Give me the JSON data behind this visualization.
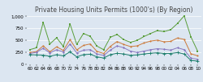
{
  "title": "Private Housing Units Permits (1000's) (By Region)",
  "years": [
    1960,
    1962,
    1964,
    1966,
    1968,
    1970,
    1972,
    1974,
    1976,
    1978,
    1980,
    1982,
    1984,
    1986,
    1988,
    1990,
    1992,
    1994,
    1996,
    1998,
    2000,
    2002,
    2004,
    2006,
    2008,
    2010
  ],
  "south": [
    300,
    340,
    870,
    420,
    550,
    370,
    840,
    410,
    640,
    580,
    375,
    300,
    560,
    620,
    510,
    455,
    495,
    575,
    640,
    700,
    680,
    720,
    850,
    1010,
    570,
    270
  ],
  "west": [
    240,
    260,
    380,
    255,
    360,
    285,
    510,
    295,
    390,
    420,
    265,
    220,
    370,
    470,
    410,
    365,
    380,
    440,
    480,
    500,
    465,
    475,
    545,
    515,
    215,
    170
  ],
  "northeast": [
    220,
    245,
    330,
    230,
    300,
    250,
    420,
    230,
    290,
    300,
    210,
    180,
    290,
    380,
    340,
    270,
    240,
    270,
    300,
    320,
    310,
    290,
    340,
    300,
    120,
    100
  ],
  "midwest": [
    195,
    190,
    185,
    160,
    195,
    170,
    255,
    150,
    195,
    205,
    150,
    125,
    195,
    225,
    210,
    180,
    190,
    210,
    225,
    235,
    220,
    220,
    240,
    210,
    75,
    60
  ],
  "south_color": "#5a9e3b",
  "west_color": "#cc7a3a",
  "northeast_color": "#8878c0",
  "midwest_color": "#1a7d6b",
  "bg_color": "#dce6f1",
  "ylim": [
    0,
    1050
  ],
  "yticks": [
    0,
    250,
    500,
    750,
    1000
  ],
  "ytick_labels": [
    "0",
    "250",
    "500",
    "750",
    "1,000"
  ],
  "title_fontsize": 5.5,
  "tick_fontsize": 4.0,
  "line_width": 0.7,
  "marker_size": 1.8
}
